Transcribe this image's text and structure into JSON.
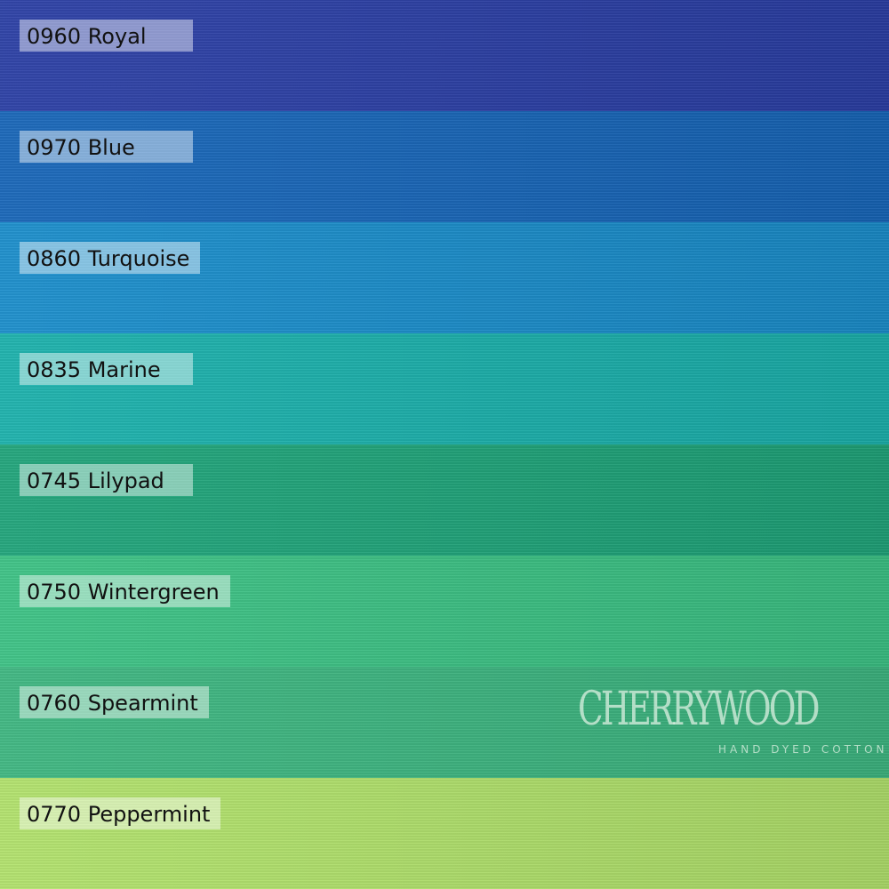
{
  "swatches": [
    {
      "label": "0960 Royal",
      "color": "#2b3fa6"
    },
    {
      "label": "0970 Blue",
      "color": "#1766b9"
    },
    {
      "label": "0860 Turquoise",
      "color": "#1a8ecc"
    },
    {
      "label": "0835 Marine",
      "color": "#1bb2ad"
    },
    {
      "label": "0745 Lilypad",
      "color": "#1fa57a"
    },
    {
      "label": "0750 Wintergreen",
      "color": "#3cc385"
    },
    {
      "label": "0760 Spearmint",
      "color": "#3db781"
    },
    {
      "label": "0770 Peppermint",
      "color": "#b2e36c"
    }
  ],
  "logo": {
    "name": "CHERRYWOOD",
    "tagline": "HAND DYED COTTON"
  }
}
